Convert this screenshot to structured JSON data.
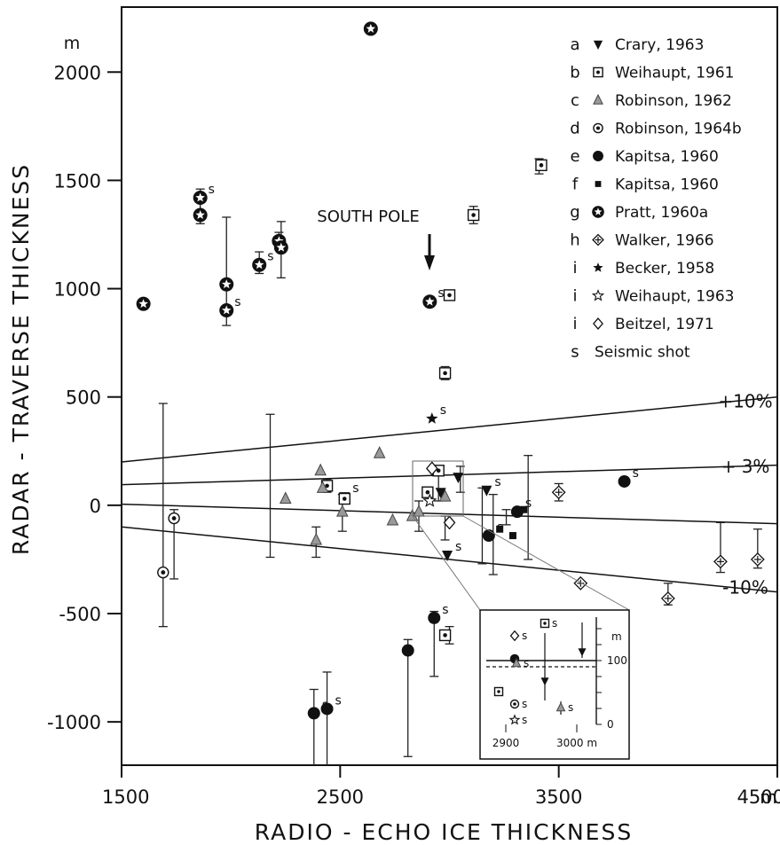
{
  "chart_data": {
    "type": "scatter",
    "title": "",
    "xlabel": "RADIO - ECHO   ICE  THICKNESS",
    "ylabel": "RADAR   -   TRAVERSE  THICKNESS",
    "xunit": "m",
    "yunit": "m",
    "xlim": [
      1500,
      4500
    ],
    "ylim": [
      -1200,
      2300
    ],
    "x_ticks": [
      1500,
      2500,
      3500,
      4500
    ],
    "y_ticks": [
      -1000,
      -500,
      0,
      500,
      1000,
      1500,
      2000
    ],
    "y_tick_labels": [
      "-1000",
      "-500",
      "0",
      "500",
      "1000",
      "1500",
      "2000"
    ],
    "x_tick_labels": [
      "1500",
      "2500",
      "3500",
      "4500"
    ],
    "grid": false,
    "annotation": "SOUTH POLE",
    "south_pole_x": 2930,
    "reference_lines": [
      {
        "label": "+10%",
        "pct": 10
      },
      {
        "label": "+ 3%",
        "pct": 3
      },
      {
        "label": "-10%",
        "pct": -10
      },
      {
        "label": "",
        "pct": -3
      }
    ],
    "legend": [
      {
        "letter": "a",
        "marker": "tri-down",
        "label": "Crary, 1963"
      },
      {
        "letter": "b",
        "marker": "sq-dot",
        "label": "Weihaupt, 1961"
      },
      {
        "letter": "c",
        "marker": "tri-up",
        "label": "Robinson, 1962"
      },
      {
        "letter": "d",
        "marker": "circ-dot",
        "label": "Robinson, 1964b"
      },
      {
        "letter": "e",
        "marker": "circ-fill",
        "label": "Kapitsa, 1960"
      },
      {
        "letter": "f",
        "marker": "sq-fill",
        "label": "Kapitsa, 1960"
      },
      {
        "letter": "g",
        "marker": "circ-star",
        "label": "Pratt, 1960a"
      },
      {
        "letter": "h",
        "marker": "diam-plus",
        "label": "Walker, 1966"
      },
      {
        "letter": "i",
        "marker": "star-fill",
        "label": "Becker, 1958"
      },
      {
        "letter": "i",
        "marker": "star-open",
        "label": "Weihaupt, 1963"
      },
      {
        "letter": "i",
        "marker": "diam-open",
        "label": "Beitzel, 1971"
      },
      {
        "letter": "s",
        "marker": "none",
        "label": "Seismic shot"
      }
    ],
    "series": [
      {
        "name": "Crary, 1963",
        "marker": "tri-down",
        "points": [
          {
            "x": 2520,
            "y": 40,
            "s": true
          },
          {
            "x": 3170,
            "y": 70,
            "s": true
          },
          {
            "x": 2990,
            "y": -230,
            "s": true
          },
          {
            "x": 3040,
            "y": 130
          },
          {
            "x": 2960,
            "y": 60
          }
        ]
      },
      {
        "name": "Weihaupt, 1961",
        "marker": "sq-dot",
        "points": [
          {
            "x": 3420,
            "y": 1570
          },
          {
            "x": 3110,
            "y": 1340
          },
          {
            "x": 3000,
            "y": 970
          },
          {
            "x": 2980,
            "y": 610
          },
          {
            "x": 2980,
            "y": -600
          },
          {
            "x": 2440,
            "y": 90
          },
          {
            "x": 2520,
            "y": 30
          },
          {
            "x": 2900,
            "y": 60
          },
          {
            "x": 2950,
            "y": 160
          }
        ]
      },
      {
        "name": "Robinson, 1962",
        "marker": "tri-up",
        "points": [
          {
            "x": 2250,
            "y": 30
          },
          {
            "x": 2410,
            "y": 160
          },
          {
            "x": 2420,
            "y": 80
          },
          {
            "x": 2510,
            "y": -30
          },
          {
            "x": 2390,
            "y": -160
          },
          {
            "x": 2680,
            "y": 240
          },
          {
            "x": 2740,
            "y": -70
          },
          {
            "x": 2830,
            "y": -50
          },
          {
            "x": 2860,
            "y": -30
          },
          {
            "x": 2980,
            "y": 40
          }
        ]
      },
      {
        "name": "Robinson, 1964b",
        "marker": "circ-dot",
        "points": [
          {
            "x": 1740,
            "y": -60
          },
          {
            "x": 1690,
            "y": -310
          }
        ]
      },
      {
        "name": "Kapitsa, 1960",
        "marker": "circ-fill",
        "points": [
          {
            "x": 3800,
            "y": 110,
            "s": true
          },
          {
            "x": 3310,
            "y": -30,
            "s": true
          },
          {
            "x": 3180,
            "y": -140,
            "s": true
          },
          {
            "x": 2810,
            "y": -670
          },
          {
            "x": 2930,
            "y": -520,
            "s": true
          },
          {
            "x": 2380,
            "y": -960,
            "s": true
          },
          {
            "x": 2440,
            "y": -940,
            "s": true
          }
        ]
      },
      {
        "name": "Kapitsa, 1960",
        "marker": "sq-fill",
        "points": [
          {
            "x": 3230,
            "y": -110
          },
          {
            "x": 3340,
            "y": -20
          },
          {
            "x": 3290,
            "y": -140
          }
        ]
      },
      {
        "name": "Pratt, 1960a",
        "marker": "circ-star",
        "points": [
          {
            "x": 1600,
            "y": 930
          },
          {
            "x": 2640,
            "y": 2200
          },
          {
            "x": 1860,
            "y": 1420,
            "s": true
          },
          {
            "x": 1860,
            "y": 1340
          },
          {
            "x": 1980,
            "y": 1020
          },
          {
            "x": 1980,
            "y": 900,
            "s": true
          },
          {
            "x": 2130,
            "y": 1110,
            "s": true
          },
          {
            "x": 2220,
            "y": 1220
          },
          {
            "x": 2230,
            "y": 1190
          },
          {
            "x": 2910,
            "y": 940,
            "s": true
          }
        ]
      },
      {
        "name": "Walker, 1966",
        "marker": "diam-plus",
        "points": [
          {
            "x": 3500,
            "y": 60
          },
          {
            "x": 3600,
            "y": -360
          },
          {
            "x": 4000,
            "y": -430
          },
          {
            "x": 4240,
            "y": -260
          },
          {
            "x": 4410,
            "y": -250
          }
        ]
      },
      {
        "name": "Becker, 1958",
        "marker": "star-fill",
        "points": [
          {
            "x": 2920,
            "y": 400,
            "s": true
          }
        ]
      },
      {
        "name": "Weihaupt, 1963",
        "marker": "star-open",
        "points": [
          {
            "x": 2910,
            "y": 20
          }
        ]
      },
      {
        "name": "Beitzel, 1971",
        "marker": "diam-open",
        "points": [
          {
            "x": 3000,
            "y": -80
          },
          {
            "x": 2920,
            "y": 170
          }
        ]
      }
    ],
    "inset": {
      "x_tick_labels": [
        "2900",
        "3000 m"
      ],
      "y_tick_labels": [
        "100",
        "0"
      ],
      "yunit": "m",
      "xlim": [
        2880,
        3050
      ],
      "ylim": [
        -20,
        200
      ]
    }
  }
}
